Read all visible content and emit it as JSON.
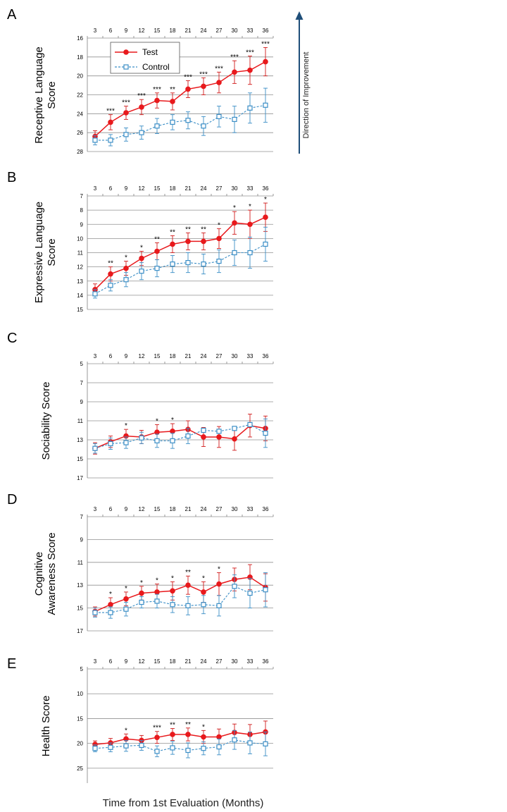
{
  "x_axis_title": "Time from 1st Evaluation (Months)",
  "direction_label": "Direction of Improvement",
  "legend": {
    "test": "Test",
    "control": "Control"
  },
  "colors": {
    "test": "#e8191c",
    "test_err": "#d01a1a",
    "control": "#3b8ec6",
    "grid": "#909090"
  },
  "chart_data": [
    {
      "panel": "A",
      "type": "line",
      "ylabel": "Receptive Language Score",
      "ylabel_lines": [
        "Receptive Language",
        "Score"
      ],
      "ylim": [
        16,
        28
      ],
      "yticks": [
        16,
        18,
        20,
        22,
        24,
        26,
        28
      ],
      "y_inverted": true,
      "x": [
        3,
        6,
        9,
        12,
        15,
        18,
        21,
        24,
        27,
        30,
        33,
        36
      ],
      "series": [
        {
          "name": "Test",
          "values": [
            26.4,
            24.9,
            23.9,
            23.3,
            22.6,
            22.7,
            21.4,
            21.1,
            20.7,
            19.6,
            19.4,
            18.5
          ],
          "err": [
            0.6,
            0.8,
            0.7,
            0.8,
            0.8,
            0.9,
            0.9,
            0.9,
            1.1,
            1.2,
            1.5,
            1.5
          ]
        },
        {
          "name": "Control",
          "values": [
            26.8,
            26.8,
            26.2,
            26.0,
            25.3,
            24.9,
            24.7,
            25.3,
            24.3,
            24.6,
            23.4,
            23.1
          ],
          "err": [
            0.5,
            0.6,
            0.7,
            0.7,
            0.8,
            0.8,
            0.9,
            1.0,
            1.1,
            1.4,
            1.6,
            1.8
          ]
        }
      ],
      "annotations": [
        "",
        "***",
        "***",
        "***",
        "***",
        "**",
        "***",
        "***",
        "***",
        "***",
        "***",
        "***"
      ]
    },
    {
      "panel": "B",
      "type": "line",
      "ylabel": "Expressive Language Score",
      "ylabel_lines": [
        "Expressive Language",
        "Score"
      ],
      "ylim": [
        7,
        15
      ],
      "yticks": [
        7,
        8,
        9,
        10,
        11,
        12,
        13,
        14,
        15
      ],
      "y_inverted": true,
      "x": [
        3,
        6,
        9,
        12,
        15,
        18,
        21,
        24,
        27,
        30,
        33,
        36
      ],
      "series": [
        {
          "name": "Test",
          "values": [
            13.6,
            12.5,
            12.1,
            11.4,
            10.9,
            10.4,
            10.2,
            10.2,
            10.0,
            8.9,
            9.0,
            8.5
          ],
          "err": [
            0.4,
            0.5,
            0.5,
            0.5,
            0.6,
            0.6,
            0.6,
            0.6,
            0.7,
            0.8,
            1.0,
            1.0
          ]
        },
        {
          "name": "Control",
          "values": [
            13.9,
            13.3,
            12.9,
            12.3,
            12.1,
            11.8,
            11.7,
            11.8,
            11.6,
            11.0,
            11.0,
            10.4
          ],
          "err": [
            0.3,
            0.4,
            0.5,
            0.6,
            0.6,
            0.6,
            0.7,
            0.7,
            0.8,
            0.9,
            1.1,
            1.2
          ]
        }
      ],
      "annotations": [
        "",
        "**",
        "*",
        "*",
        "**",
        "**",
        "**",
        "**",
        "*",
        "*",
        "*",
        "*"
      ]
    },
    {
      "panel": "C",
      "type": "line",
      "ylabel": "Sociability Score",
      "ylabel_lines": [
        "Sociability Score"
      ],
      "ylim": [
        5,
        17
      ],
      "yticks": [
        5,
        7,
        9,
        11,
        13,
        15,
        17
      ],
      "y_inverted": true,
      "x": [
        3,
        6,
        9,
        12,
        15,
        18,
        21,
        24,
        27,
        30,
        33,
        36
      ],
      "series": [
        {
          "name": "Test",
          "values": [
            13.9,
            13.2,
            12.6,
            12.7,
            12.2,
            12.1,
            11.9,
            12.7,
            12.7,
            12.9,
            11.5,
            11.8
          ],
          "err": [
            0.6,
            0.6,
            0.7,
            0.7,
            0.8,
            0.8,
            0.9,
            1.0,
            1.1,
            1.2,
            1.2,
            1.3
          ]
        },
        {
          "name": "Control",
          "values": [
            13.9,
            13.4,
            13.3,
            12.8,
            13.1,
            13.1,
            12.6,
            12.0,
            12.1,
            11.8,
            11.4,
            12.3
          ],
          "err": [
            0.5,
            0.6,
            0.6,
            0.6,
            0.7,
            0.8,
            0.8,
            0.0,
            0.0,
            0.0,
            0.2,
            1.5
          ]
        }
      ],
      "annotations": [
        "",
        "",
        "*",
        "",
        "*",
        "*",
        "",
        "",
        "",
        "",
        "",
        ""
      ]
    },
    {
      "panel": "D",
      "type": "line",
      "ylabel": "Cognitive Awareness Score",
      "ylabel_lines": [
        "Cognitive",
        "Awareness Score"
      ],
      "ylim": [
        7,
        17
      ],
      "yticks": [
        7,
        9,
        11,
        13,
        15,
        17
      ],
      "y_inverted": true,
      "x": [
        3,
        6,
        9,
        12,
        15,
        18,
        21,
        24,
        27,
        30,
        33,
        36
      ],
      "series": [
        {
          "name": "Test",
          "values": [
            15.3,
            14.7,
            14.2,
            13.7,
            13.6,
            13.5,
            13.0,
            13.6,
            12.9,
            12.5,
            12.3,
            13.2
          ],
          "err": [
            0.4,
            0.6,
            0.6,
            0.6,
            0.7,
            0.8,
            0.8,
            0.9,
            1.0,
            1.0,
            1.1,
            1.2
          ]
        },
        {
          "name": "Control",
          "values": [
            15.4,
            15.4,
            15.1,
            14.5,
            14.4,
            14.7,
            14.8,
            14.7,
            14.8,
            13.1,
            13.7,
            13.4
          ],
          "err": [
            0.4,
            0.5,
            0.6,
            0.5,
            0.6,
            0.7,
            0.8,
            0.8,
            0.9,
            1.0,
            1.3,
            1.5
          ]
        }
      ],
      "annotations": [
        "",
        "*",
        "*",
        "*",
        "*",
        "*",
        "**",
        "*",
        "*",
        "",
        "",
        ""
      ]
    },
    {
      "panel": "E",
      "type": "line",
      "ylabel": "Health Score",
      "ylabel_lines": [
        "Health Score"
      ],
      "ylim": [
        5,
        28
      ],
      "yticks": [
        5,
        10,
        15,
        20,
        25
      ],
      "y_inverted": true,
      "x": [
        3,
        6,
        9,
        12,
        15,
        18,
        21,
        24,
        27,
        30,
        33,
        36
      ],
      "series": [
        {
          "name": "Test",
          "values": [
            20.2,
            19.9,
            19.1,
            19.4,
            18.8,
            18.2,
            18.2,
            18.7,
            18.7,
            17.8,
            18.2,
            17.7
          ],
          "err": [
            0.7,
            0.9,
            1.0,
            1.0,
            1.2,
            1.2,
            1.3,
            1.3,
            1.6,
            1.7,
            2.0,
            2.2
          ]
        },
        {
          "name": "Control",
          "values": [
            21.0,
            20.8,
            20.5,
            20.4,
            21.6,
            20.9,
            21.4,
            21.0,
            20.7,
            19.3,
            19.9,
            20.1
          ],
          "err": [
            0.7,
            0.9,
            1.1,
            1.0,
            1.1,
            1.3,
            1.5,
            1.3,
            1.6,
            1.9,
            2.2,
            2.4
          ]
        }
      ],
      "annotations": [
        "",
        "",
        "*",
        "",
        "***",
        "**",
        "**",
        "*",
        "",
        "",
        "",
        ""
      ]
    }
  ]
}
